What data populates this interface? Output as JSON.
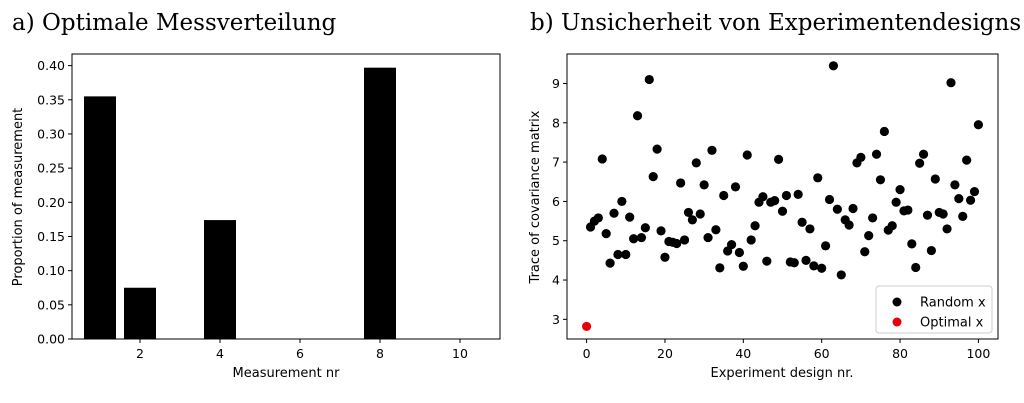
{
  "chart_data": [
    {
      "type": "bar",
      "title": "a) Optimale Messverteilung",
      "xlabel": "Measurement nr",
      "ylabel": "Proportion of measurement",
      "x": [
        1,
        2,
        3,
        4,
        5,
        6,
        7,
        8,
        9,
        10
      ],
      "values": [
        0.355,
        0.075,
        0.0,
        0.174,
        0.0,
        0.0,
        0.0,
        0.397,
        0.0,
        0.0
      ],
      "xticks": [
        "2",
        "4",
        "6",
        "8",
        "10"
      ],
      "yticks": [
        "0.00",
        "0.05",
        "0.10",
        "0.15",
        "0.20",
        "0.25",
        "0.30",
        "0.35",
        "0.40"
      ],
      "xlim": [
        0.3,
        11.0
      ],
      "ylim": [
        0,
        0.417
      ],
      "bar_color": "#000000",
      "grid": false
    },
    {
      "type": "scatter",
      "title": "b) Unsicherheit von Experimentendesigns",
      "xlabel": "Experiment design nr.",
      "ylabel": "Trace of covariance matrix",
      "xticks": [
        "0",
        "20",
        "40",
        "60",
        "80",
        "100"
      ],
      "yticks": [
        "3",
        "4",
        "5",
        "6",
        "7",
        "8",
        "9"
      ],
      "xlim": [
        -5,
        105
      ],
      "ylim": [
        2.5,
        9.75
      ],
      "grid": false,
      "legend_position": "bottom-right",
      "series": [
        {
          "name": "Random x",
          "color": "#000000",
          "x": [
            1,
            2,
            3,
            4,
            5,
            6,
            7,
            8,
            9,
            10,
            11,
            12,
            13,
            14,
            15,
            16,
            17,
            18,
            19,
            20,
            21,
            22,
            23,
            24,
            25,
            26,
            27,
            28,
            29,
            30,
            31,
            32,
            33,
            34,
            35,
            36,
            37,
            38,
            39,
            40,
            41,
            42,
            43,
            44,
            45,
            46,
            47,
            48,
            49,
            50,
            51,
            52,
            53,
            54,
            55,
            56,
            57,
            58,
            59,
            60,
            61,
            62,
            63,
            64,
            65,
            66,
            67,
            68,
            69,
            70,
            71,
            72,
            73,
            74,
            75,
            76,
            77,
            78,
            79,
            80,
            81,
            82,
            83,
            84,
            85,
            86,
            87,
            88,
            89,
            90,
            91,
            92,
            93,
            94,
            95,
            96,
            97,
            98,
            99,
            100
          ],
          "y": [
            5.35,
            5.5,
            5.58,
            7.08,
            5.18,
            4.43,
            5.7,
            4.65,
            6.0,
            4.65,
            5.6,
            5.05,
            8.18,
            5.08,
            5.33,
            9.1,
            6.63,
            7.33,
            5.25,
            4.58,
            4.98,
            4.96,
            4.93,
            6.47,
            5.02,
            5.72,
            5.53,
            6.98,
            5.68,
            6.42,
            5.08,
            7.3,
            5.28,
            4.31,
            6.15,
            4.74,
            4.9,
            6.37,
            4.7,
            4.35,
            7.18,
            5.02,
            5.38,
            5.98,
            6.12,
            4.48,
            5.98,
            6.02,
            7.07,
            5.75,
            6.15,
            4.46,
            4.44,
            6.18,
            5.47,
            4.5,
            5.3,
            4.36,
            6.6,
            4.3,
            4.87,
            6.05,
            9.45,
            5.8,
            4.13,
            5.53,
            5.4,
            5.82,
            6.98,
            7.12,
            4.72,
            5.13,
            5.58,
            7.2,
            6.55,
            7.78,
            5.27,
            5.38,
            5.98,
            6.3,
            5.76,
            5.78,
            4.92,
            4.32,
            6.97,
            7.2,
            5.65,
            4.75,
            6.57,
            5.72,
            5.68,
            5.3,
            9.02,
            6.42,
            6.07,
            5.62,
            7.05,
            6.03,
            6.25,
            7.95
          ]
        },
        {
          "name": "Optimal x",
          "color": "#e8000b",
          "x": [
            0
          ],
          "y": [
            2.82
          ]
        }
      ]
    }
  ]
}
